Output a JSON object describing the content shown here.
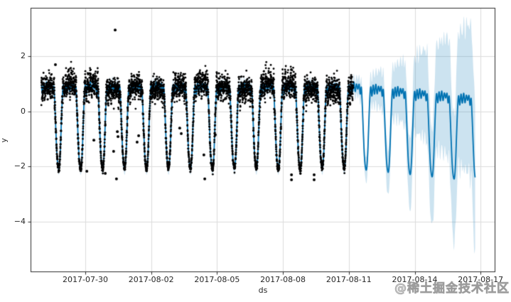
{
  "figure": {
    "background": "#ffffff",
    "watermark": "@稀土掘金技术社区"
  },
  "chart_data": {
    "type": "line",
    "subtype": "prophet_forecast_scatter_with_uncertainty_band",
    "title": "",
    "xlabel": "ds",
    "ylabel": "y",
    "grid": true,
    "legend": "none",
    "x_ticks": [
      {
        "label": "2017-07-30",
        "day_offset": 0
      },
      {
        "label": "2017-08-02",
        "day_offset": 3
      },
      {
        "label": "2017-08-05",
        "day_offset": 6
      },
      {
        "label": "2017-08-08",
        "day_offset": 9
      },
      {
        "label": "2017-08-11",
        "day_offset": 12
      },
      {
        "label": "2017-08-14",
        "day_offset": 15
      },
      {
        "label": "2017-08-17",
        "day_offset": 18
      }
    ],
    "y_ticks": [
      {
        "label": "2",
        "value": 2
      },
      {
        "label": "0",
        "value": 0
      },
      {
        "label": "−2",
        "value": -2
      },
      {
        "label": "−4",
        "value": -4
      }
    ],
    "xlim_days_rel_first_tick": [
      -2.49,
      18.67
    ],
    "ylim": [
      -5.85,
      3.75
    ],
    "colors": {
      "observations": "#000000",
      "forecast_line": "#0072B2",
      "uncertainty_band": "rgba(0,114,178,0.2)",
      "grid": "#dcdcdc",
      "spine": "#2b2b2b",
      "tick_label": "#262626",
      "watermark": "#aaaaaa"
    },
    "history": {
      "start_date": "2017-07-28",
      "end_date": "2017-08-11",
      "start_day": -2.0,
      "end_day": 12.2
    },
    "forecast": {
      "end_date": "2017-08-16",
      "end_day": 17.75
    },
    "daily_profile": {
      "comment": "repeating daily shape of fitted line, y units; u=0 at nightly trough (~19:30 local)",
      "trough_time_fraction_of_day": 0.81,
      "u": [
        0.0,
        0.05,
        0.1,
        0.15,
        0.19,
        0.24,
        0.3,
        0.36,
        0.42,
        0.48,
        0.54,
        0.6,
        0.66,
        0.71,
        0.76,
        0.8,
        0.85,
        0.9,
        0.95
      ],
      "y": [
        -2.05,
        -1.5,
        -0.4,
        0.6,
        0.95,
        0.62,
        1.02,
        0.7,
        1.06,
        0.72,
        1.0,
        0.82,
        1.0,
        0.65,
        0.9,
        0.3,
        -0.7,
        -1.6,
        -2.0
      ]
    },
    "forecast_trend_decline": 0.45,
    "uncertainty": {
      "history_halfwidth": 0.22,
      "forecast_start_halfwidth": 0.3,
      "forecast_end_halfwidth": 2.85,
      "growth_exponent": 1.25
    },
    "scatter": {
      "interval_minutes": 5,
      "noise_sigma_plateau": 0.22,
      "noise_sigma_trough": 0.07,
      "per_day_amplitude_jitter": 0.22,
      "marker_radius_px": 1.4
    },
    "outliers": [
      [
        -1.36,
        1.69
      ],
      [
        1.36,
        2.95
      ],
      [
        0.07,
        -2.18
      ],
      [
        0.39,
        -1.05
      ],
      [
        0.91,
        -2.26
      ],
      [
        1.29,
        -1.46
      ],
      [
        1.42,
        -2.46
      ],
      [
        1.46,
        -0.74
      ],
      [
        1.49,
        -0.92
      ],
      [
        2.36,
        -1.12
      ],
      [
        2.43,
        -0.89
      ],
      [
        4.3,
        -0.61
      ],
      [
        4.37,
        -0.81
      ],
      [
        5.4,
        -1.59
      ],
      [
        5.44,
        -2.46
      ],
      [
        5.92,
        -0.86
      ],
      [
        9.39,
        -2.31
      ],
      [
        9.39,
        -2.49
      ],
      [
        10.42,
        -2.31
      ],
      [
        10.42,
        -2.49
      ]
    ]
  }
}
